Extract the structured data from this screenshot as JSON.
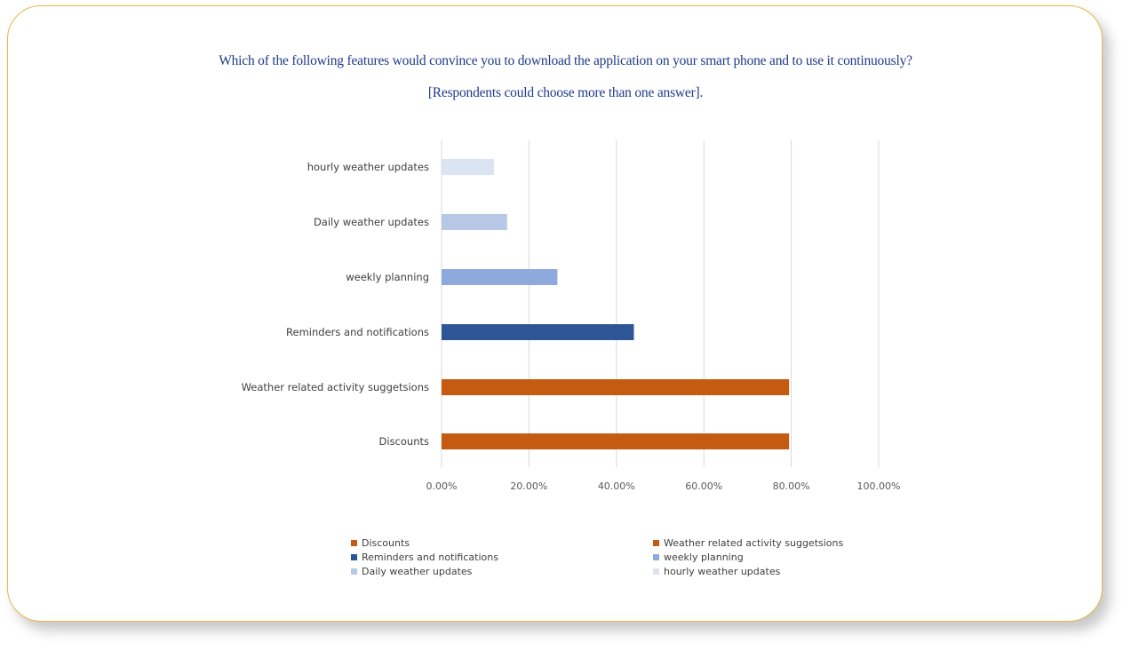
{
  "title": {
    "line1": "Which of the following features  would convince you to download the application on your smart phone and to use it continuously?",
    "line2": "[Respondents could choose more than one answer]."
  },
  "chart_data": {
    "type": "bar",
    "orientation": "horizontal",
    "categories": [
      "hourly weather updates",
      "Daily weather updates",
      "weekly planning",
      "Reminders and notifications",
      "Weather related activity suggetsions",
      "Discounts"
    ],
    "values": [
      0.12,
      0.15,
      0.265,
      0.44,
      0.795,
      0.795
    ],
    "colors": [
      "#dbe4f3",
      "#b7c8e6",
      "#8eaadc",
      "#2e5596",
      "#c55a11",
      "#c55a11"
    ],
    "xlim": [
      0,
      1
    ],
    "xticks": [
      0,
      0.2,
      0.4,
      0.6,
      0.8,
      1.0
    ],
    "xtick_labels": [
      "0.00%",
      "20.00%",
      "40.00%",
      "60.00%",
      "80.00%",
      "100.00%"
    ],
    "grid": true,
    "xlabel": "",
    "ylabel": "",
    "legend_position": "bottom",
    "legend": [
      {
        "label": "Discounts",
        "color": "#c55a11"
      },
      {
        "label": "Weather related activity suggetsions",
        "color": "#c55a11"
      },
      {
        "label": "Reminders and notifications",
        "color": "#2e5596"
      },
      {
        "label": "weekly planning",
        "color": "#8eaadc"
      },
      {
        "label": "Daily weather updates",
        "color": "#b7c8e6"
      },
      {
        "label": "hourly weather updates",
        "color": "#dbe4f3"
      }
    ]
  }
}
